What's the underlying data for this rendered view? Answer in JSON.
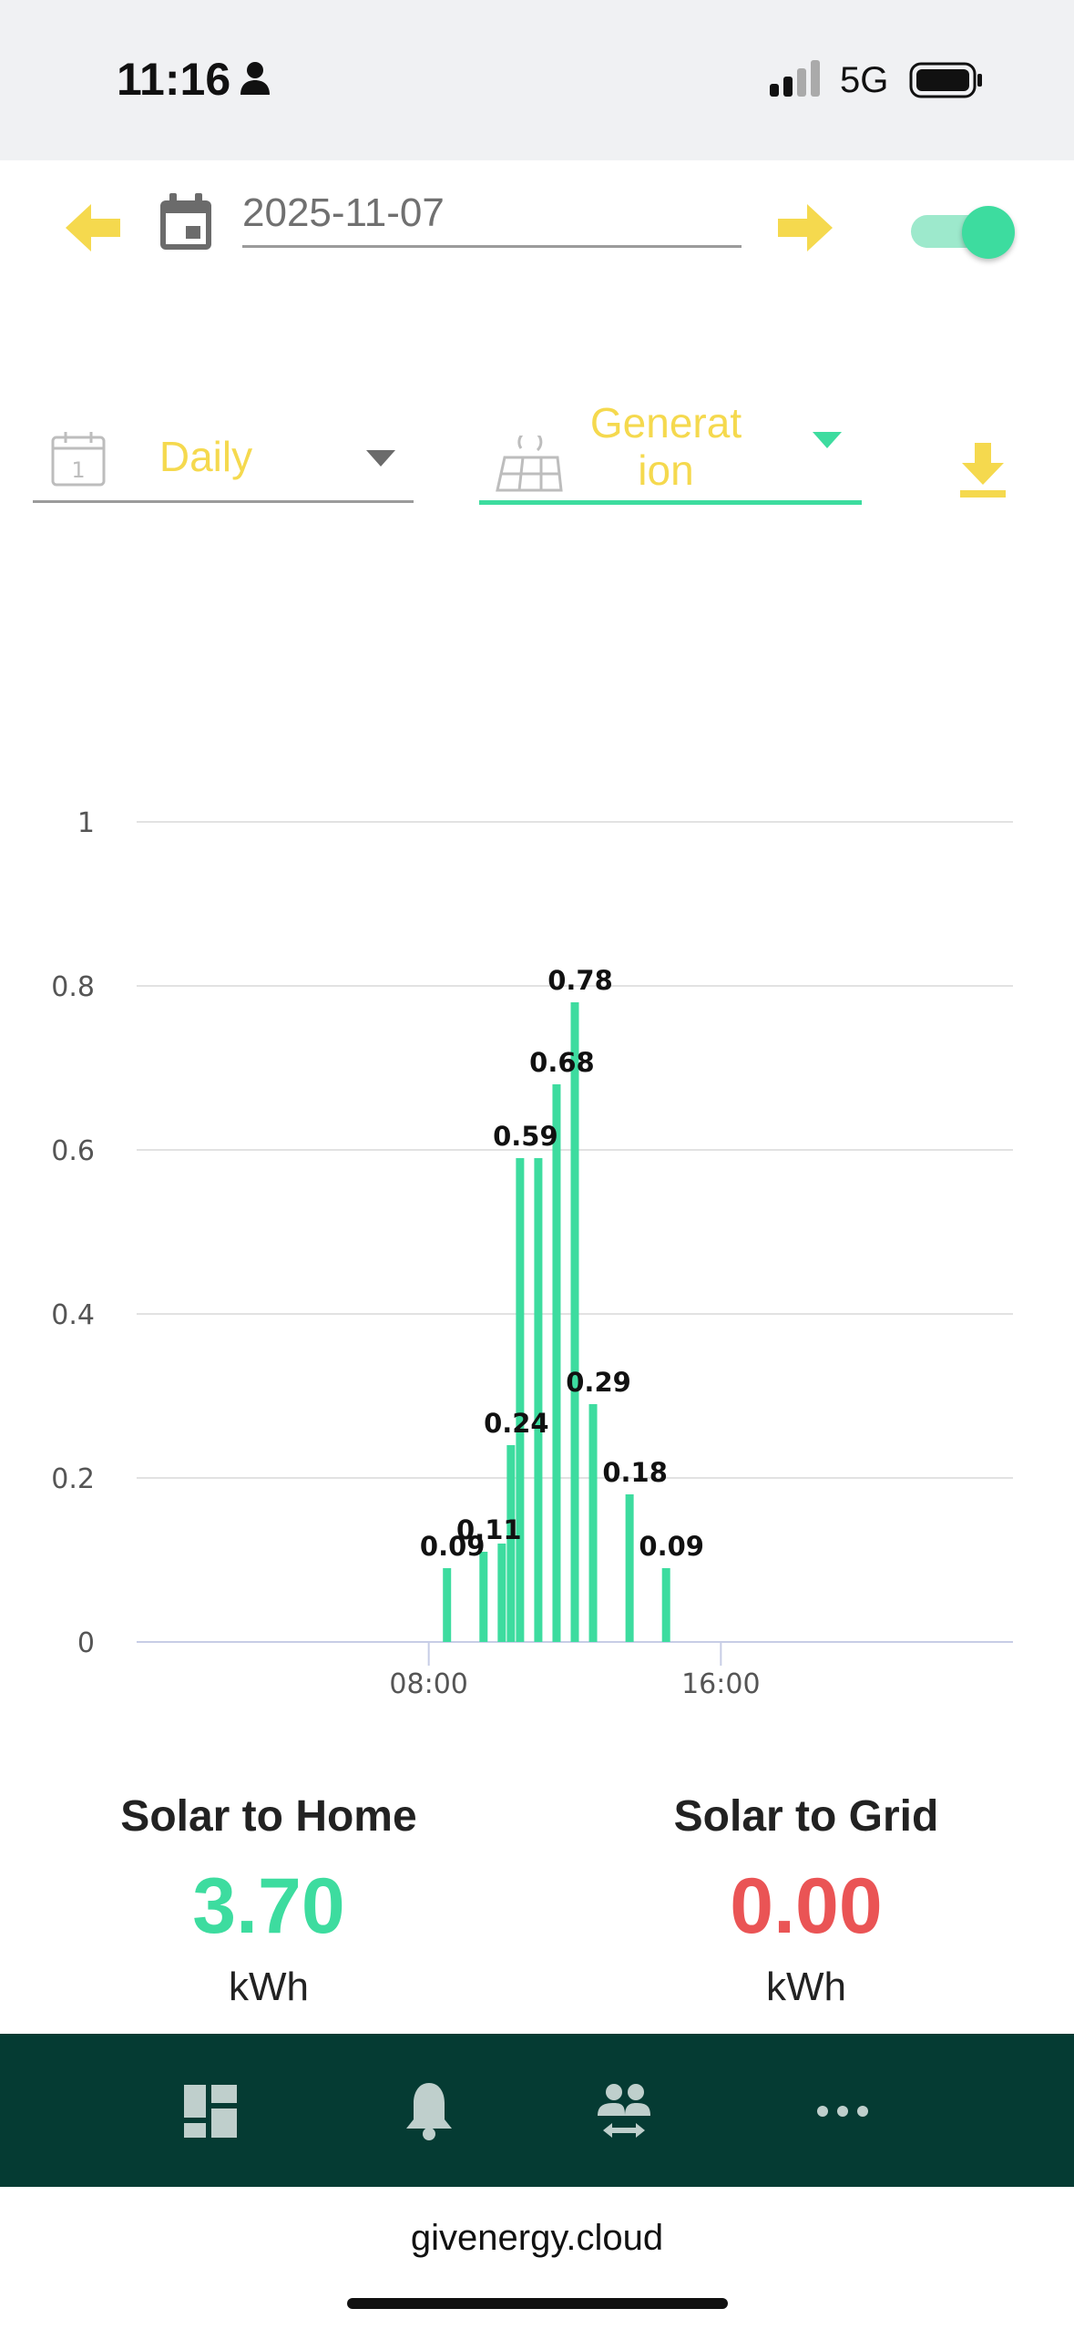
{
  "status_bar": {
    "time": "11:16",
    "network": "5G"
  },
  "header": {
    "prev_icon": "arrow-left-icon",
    "next_icon": "arrow-right-icon",
    "calendar_icon": "calendar-icon",
    "date": "2025-11-07",
    "toggle_on": true
  },
  "filters": {
    "period": {
      "label": "Daily",
      "icon": "calendar-day-icon",
      "calendar_number": "1"
    },
    "type": {
      "line1": "Generat",
      "line2": "ion",
      "icon": "solar-panel-icon"
    },
    "download_icon": "download-icon"
  },
  "colors": {
    "accent_yellow": "#f5d94e",
    "bar_green": "#3ddc9f",
    "value_red": "#ea5455",
    "nav_bg": "#053b33"
  },
  "chart_data": {
    "type": "bar",
    "x": [
      "08:30",
      "09:30",
      "10:00",
      "10:15",
      "10:30",
      "11:00",
      "11:30",
      "12:00",
      "12:30",
      "13:30",
      "14:30"
    ],
    "values": [
      0.09,
      0.11,
      0.12,
      0.24,
      0.59,
      0.59,
      0.68,
      0.78,
      0.29,
      0.18,
      0.09
    ],
    "labels": [
      "0.09",
      "0.11",
      "",
      "0.24",
      "0.59",
      "",
      "0.68",
      "0.78",
      "0.29",
      "0.18",
      "0.09"
    ],
    "xticks": [
      "08:00",
      "16:00"
    ],
    "xrange": [
      "00:00",
      "24:00"
    ],
    "yticks": [
      "0",
      "0.2",
      "0.4",
      "0.6",
      "0.8",
      "1"
    ],
    "ylim": [
      0,
      1
    ],
    "grid": true
  },
  "summary": {
    "solar_to_home": {
      "title": "Solar to Home",
      "value": "3.70",
      "unit": "kWh"
    },
    "solar_to_grid": {
      "title": "Solar to Grid",
      "value": "0.00",
      "unit": "kWh"
    }
  },
  "bottom_nav": {
    "items": [
      "dashboard-icon",
      "bell-icon",
      "users-swap-icon",
      "more-icon"
    ]
  },
  "browser": {
    "url": "givenergy.cloud"
  }
}
